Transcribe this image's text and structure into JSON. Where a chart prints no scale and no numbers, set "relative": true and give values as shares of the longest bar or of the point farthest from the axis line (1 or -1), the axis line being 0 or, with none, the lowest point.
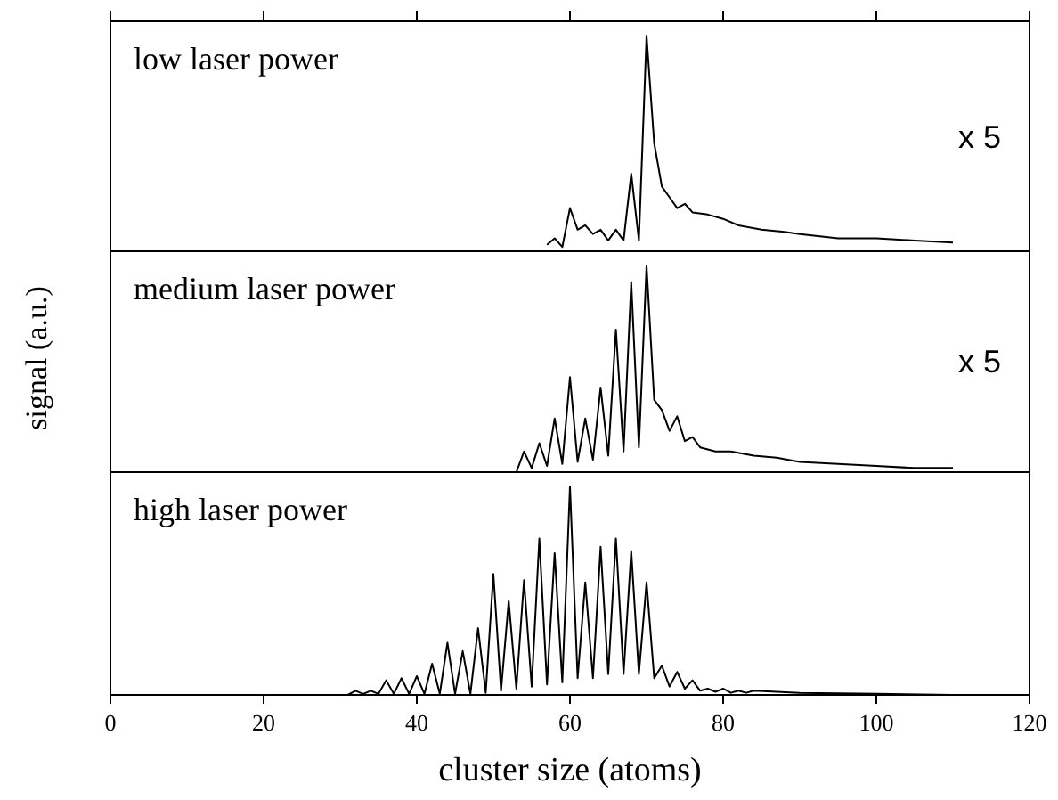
{
  "chart_data": [
    {
      "type": "line",
      "title": "low laser power",
      "relative": true,
      "xlim": [
        0,
        120
      ],
      "xticks": [
        0,
        20,
        40,
        60,
        80,
        100,
        120
      ],
      "tick_labels": false,
      "annotations": [
        "x 5"
      ],
      "grid": false,
      "marker": "none",
      "line_style": "solid",
      "series": [
        {
          "color": "#000000",
          "x": [
            57,
            58,
            59,
            60,
            61,
            62,
            63,
            64,
            65,
            66,
            67,
            68,
            69,
            70,
            71,
            72,
            73,
            74,
            75,
            76,
            78,
            80,
            82,
            85,
            88,
            90,
            95,
            100,
            105,
            110
          ],
          "values": [
            0.03,
            0.06,
            0.02,
            0.2,
            0.1,
            0.12,
            0.08,
            0.1,
            0.05,
            0.1,
            0.05,
            0.36,
            0.05,
            1.0,
            0.5,
            0.3,
            0.25,
            0.2,
            0.22,
            0.18,
            0.17,
            0.15,
            0.12,
            0.1,
            0.09,
            0.08,
            0.06,
            0.06,
            0.05,
            0.04
          ]
        }
      ]
    },
    {
      "type": "line",
      "title": "medium laser power",
      "ylabel": "signal (a.u.)",
      "relative": true,
      "xlim": [
        0,
        120
      ],
      "tick_labels": false,
      "annotations": [
        "x 5"
      ],
      "grid": false,
      "marker": "none",
      "line_style": "solid",
      "series": [
        {
          "color": "#000000",
          "x": [
            53,
            54,
            55,
            56,
            57,
            58,
            59,
            60,
            61,
            62,
            63,
            64,
            65,
            66,
            67,
            68,
            69,
            70,
            71,
            72,
            73,
            74,
            75,
            76,
            77,
            79,
            81,
            84,
            87,
            90,
            95,
            100,
            105,
            110
          ],
          "values": [
            0,
            0.1,
            0.02,
            0.14,
            0.03,
            0.26,
            0.04,
            0.46,
            0.05,
            0.26,
            0.06,
            0.41,
            0.08,
            0.69,
            0.1,
            0.92,
            0.12,
            1.0,
            0.35,
            0.3,
            0.2,
            0.27,
            0.15,
            0.17,
            0.12,
            0.1,
            0.1,
            0.08,
            0.07,
            0.05,
            0.04,
            0.03,
            0.02,
            0.02
          ]
        }
      ]
    },
    {
      "type": "line",
      "title": "high laser power",
      "xlabel": "cluster size (atoms)",
      "relative": true,
      "xlim": [
        0,
        120
      ],
      "xticks": [
        0,
        20,
        40,
        60,
        80,
        100,
        120
      ],
      "tick_labels": "x",
      "grid": false,
      "marker": "none",
      "line_style": "solid",
      "series": [
        {
          "color": "#000000",
          "x": [
            31,
            32,
            33,
            34,
            35,
            36,
            37,
            38,
            39,
            40,
            41,
            42,
            43,
            44,
            45,
            46,
            47,
            48,
            49,
            50,
            51,
            52,
            53,
            54,
            55,
            56,
            57,
            58,
            59,
            60,
            61,
            62,
            63,
            64,
            65,
            66,
            67,
            68,
            69,
            70,
            71,
            72,
            73,
            74,
            75,
            76,
            77,
            78,
            79,
            80,
            81,
            82,
            83,
            84,
            90,
            100,
            110
          ],
          "values": [
            0,
            0.02,
            0.005,
            0.02,
            0.005,
            0.07,
            0.005,
            0.08,
            0.005,
            0.09,
            0.005,
            0.15,
            0.005,
            0.25,
            0.005,
            0.21,
            0.005,
            0.32,
            0.01,
            0.58,
            0.02,
            0.45,
            0.03,
            0.55,
            0.04,
            0.75,
            0.05,
            0.68,
            0.06,
            1.0,
            0.08,
            0.54,
            0.08,
            0.71,
            0.1,
            0.75,
            0.1,
            0.69,
            0.1,
            0.54,
            0.08,
            0.14,
            0.04,
            0.11,
            0.03,
            0.07,
            0.02,
            0.03,
            0.015,
            0.03,
            0.01,
            0.02,
            0.01,
            0.02,
            0.01,
            0.005,
            0
          ]
        }
      ]
    }
  ]
}
